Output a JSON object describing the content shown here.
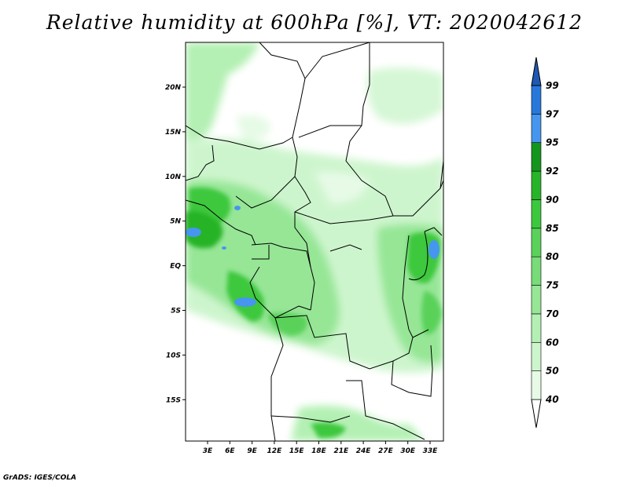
{
  "title": "Relative humidity at 600hPa [%], VT: 2020042612",
  "credit": "GrADS: IGES/COLA",
  "map": {
    "lat_labels": [
      "20N",
      "15N",
      "10N",
      "5N",
      "EQ",
      "5S",
      "10S",
      "15S"
    ],
    "lon_labels": [
      "3E",
      "6E",
      "9E",
      "12E",
      "15E",
      "18E",
      "21E",
      "24E",
      "27E",
      "30E",
      "33E"
    ]
  },
  "colorbar": {
    "levels": [
      "40",
      "50",
      "60",
      "70",
      "75",
      "80",
      "85",
      "90",
      "92",
      "95",
      "97",
      "99"
    ],
    "colors": [
      "#ffffff",
      "#e6fae6",
      "#cdf5cd",
      "#b4f0b4",
      "#96e696",
      "#78dc78",
      "#5ad25a",
      "#3cc83c",
      "#28b428",
      "#14961e",
      "#4696f0",
      "#2878dc",
      "#1e5ab4"
    ]
  }
}
